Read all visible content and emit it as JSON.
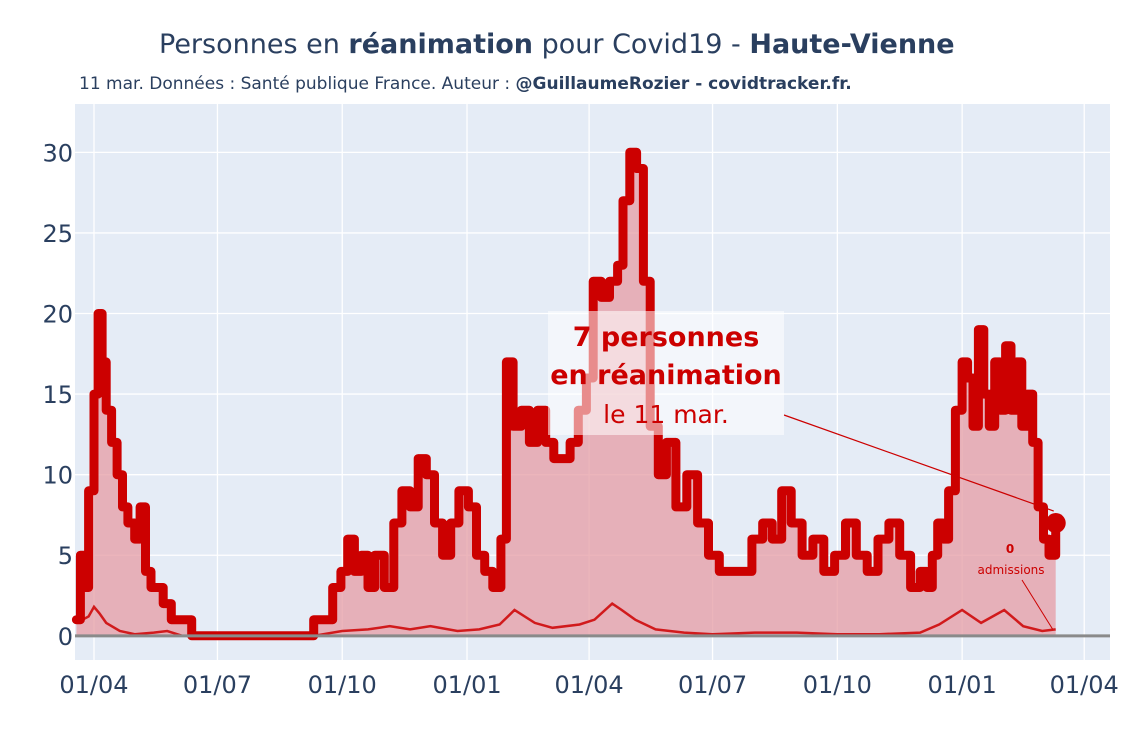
{
  "header": {
    "title_part1": "Personnes en ",
    "title_bold1": "réanimation",
    "title_part2": " pour Covid19 - ",
    "title_bold2": "Haute-Vienne",
    "subtitle_plain": "11 mar. Données : Santé publique France. Auteur : ",
    "subtitle_bold": "@GuillaumeRozier - covidtracker.fr."
  },
  "annotation": {
    "line1": "7 personnes",
    "line2": "en réanimation",
    "line3": "le 11 mar."
  },
  "admissions_annotation": {
    "value": "0",
    "label": "admissions"
  },
  "colors": {
    "plot_bg": "#e5ecf6",
    "series_red": "#cc0000",
    "area_fill": "#e59ca4",
    "axis_text": "#2a3f5f",
    "zero_line": "#8a8a8a"
  },
  "chart_data": {
    "type": "area",
    "x_unit": "date",
    "x_range": [
      "2020-03-18",
      "2022-04-20"
    ],
    "ylim": [
      -1.5,
      33
    ],
    "y_ticks": [
      0,
      5,
      10,
      15,
      20,
      25,
      30
    ],
    "y_tick_labels": [
      "0",
      "5",
      "10",
      "15",
      "20",
      "25",
      "30"
    ],
    "x_ticks": [
      "2020-04-01",
      "2020-07-01",
      "2020-10-01",
      "2021-01-01",
      "2021-04-01",
      "2021-07-01",
      "2021-10-01",
      "2022-01-01",
      "2022-04-01"
    ],
    "x_tick_labels": [
      "01/04",
      "01/07",
      "01/10",
      "01/01",
      "01/04",
      "01/07",
      "01/10",
      "01/01",
      "01/04"
    ],
    "grid": true,
    "series": [
      {
        "name": "réanimation",
        "x": [
          "2020-03-19",
          "2020-03-22",
          "2020-03-25",
          "2020-03-28",
          "2020-04-01",
          "2020-04-04",
          "2020-04-07",
          "2020-04-10",
          "2020-04-14",
          "2020-04-18",
          "2020-04-22",
          "2020-04-26",
          "2020-05-01",
          "2020-05-05",
          "2020-05-09",
          "2020-05-13",
          "2020-05-17",
          "2020-05-22",
          "2020-05-28",
          "2020-06-05",
          "2020-06-12",
          "2020-06-20",
          "2020-07-01",
          "2020-08-01",
          "2020-09-01",
          "2020-09-10",
          "2020-09-18",
          "2020-09-24",
          "2020-09-30",
          "2020-10-05",
          "2020-10-10",
          "2020-10-15",
          "2020-10-20",
          "2020-10-25",
          "2020-11-01",
          "2020-11-08",
          "2020-11-14",
          "2020-11-20",
          "2020-11-26",
          "2020-12-02",
          "2020-12-08",
          "2020-12-14",
          "2020-12-20",
          "2020-12-26",
          "2021-01-02",
          "2021-01-08",
          "2021-01-14",
          "2021-01-20",
          "2021-01-26",
          "2021-01-30",
          "2021-02-04",
          "2021-02-10",
          "2021-02-16",
          "2021-02-22",
          "2021-02-28",
          "2021-03-06",
          "2021-03-12",
          "2021-03-18",
          "2021-03-24",
          "2021-03-30",
          "2021-04-04",
          "2021-04-10",
          "2021-04-16",
          "2021-04-22",
          "2021-04-26",
          "2021-05-01",
          "2021-05-06",
          "2021-05-11",
          "2021-05-16",
          "2021-05-22",
          "2021-05-28",
          "2021-06-04",
          "2021-06-12",
          "2021-06-20",
          "2021-06-28",
          "2021-07-06",
          "2021-07-14",
          "2021-07-22",
          "2021-07-30",
          "2021-08-07",
          "2021-08-14",
          "2021-08-21",
          "2021-08-28",
          "2021-09-05",
          "2021-09-13",
          "2021-09-21",
          "2021-09-29",
          "2021-10-07",
          "2021-10-15",
          "2021-10-23",
          "2021-10-31",
          "2021-11-08",
          "2021-11-16",
          "2021-11-24",
          "2021-12-01",
          "2021-12-06",
          "2021-12-10",
          "2021-12-14",
          "2021-12-18",
          "2021-12-22",
          "2021-12-27",
          "2022-01-01",
          "2022-01-05",
          "2022-01-09",
          "2022-01-13",
          "2022-01-17",
          "2022-01-21",
          "2022-01-25",
          "2022-01-29",
          "2022-02-02",
          "2022-02-06",
          "2022-02-10",
          "2022-02-14",
          "2022-02-18",
          "2022-02-22",
          "2022-02-26",
          "2022-03-02",
          "2022-03-06",
          "2022-03-11"
        ],
        "values": [
          1,
          5,
          3,
          9,
          15,
          20,
          17,
          14,
          12,
          10,
          8,
          7,
          6,
          8,
          4,
          3,
          3,
          2,
          1,
          1,
          0,
          0,
          0,
          0,
          0,
          1,
          1,
          3,
          4,
          6,
          4,
          5,
          3,
          5,
          3,
          7,
          9,
          8,
          11,
          10,
          7,
          5,
          7,
          9,
          8,
          5,
          4,
          3,
          6,
          17,
          13,
          14,
          12,
          14,
          12,
          11,
          11,
          12,
          14,
          16,
          22,
          21,
          22,
          23,
          27,
          30,
          29,
          22,
          13,
          10,
          12,
          8,
          10,
          7,
          5,
          4,
          4,
          4,
          6,
          7,
          6,
          9,
          7,
          5,
          6,
          4,
          5,
          7,
          5,
          4,
          6,
          7,
          5,
          3,
          4,
          3,
          5,
          7,
          6,
          9,
          14,
          17,
          16,
          13,
          19,
          15,
          13,
          17,
          14,
          18,
          14,
          17,
          13,
          15,
          12,
          8,
          6,
          5,
          7
        ],
        "last_value": 7
      },
      {
        "name": "admissions",
        "x": [
          "2020-03-19",
          "2020-03-28",
          "2020-04-01",
          "2020-04-05",
          "2020-04-10",
          "2020-04-20",
          "2020-05-01",
          "2020-05-15",
          "2020-05-25",
          "2020-06-05",
          "2020-09-10",
          "2020-10-01",
          "2020-10-20",
          "2020-11-05",
          "2020-11-20",
          "2020-12-05",
          "2020-12-25",
          "2021-01-10",
          "2021-01-25",
          "2021-02-05",
          "2021-02-20",
          "2021-03-05",
          "2021-03-25",
          "2021-04-05",
          "2021-04-18",
          "2021-04-25",
          "2021-05-05",
          "2021-05-20",
          "2021-06-10",
          "2021-07-01",
          "2021-08-01",
          "2021-09-01",
          "2021-10-01",
          "2021-11-01",
          "2021-12-01",
          "2021-12-15",
          "2022-01-01",
          "2022-01-15",
          "2022-02-01",
          "2022-02-15",
          "2022-03-01",
          "2022-03-11"
        ],
        "values": [
          0.8,
          1.2,
          1.8,
          1.4,
          0.8,
          0.3,
          0.1,
          0.2,
          0.3,
          0,
          0,
          0.3,
          0.4,
          0.6,
          0.4,
          0.6,
          0.3,
          0.4,
          0.7,
          1.6,
          0.8,
          0.5,
          0.7,
          1.0,
          2.0,
          1.6,
          1.0,
          0.4,
          0.2,
          0.1,
          0.2,
          0.2,
          0.1,
          0.1,
          0.2,
          0.7,
          1.6,
          0.8,
          1.6,
          0.6,
          0.3,
          0.4
        ]
      }
    ]
  }
}
